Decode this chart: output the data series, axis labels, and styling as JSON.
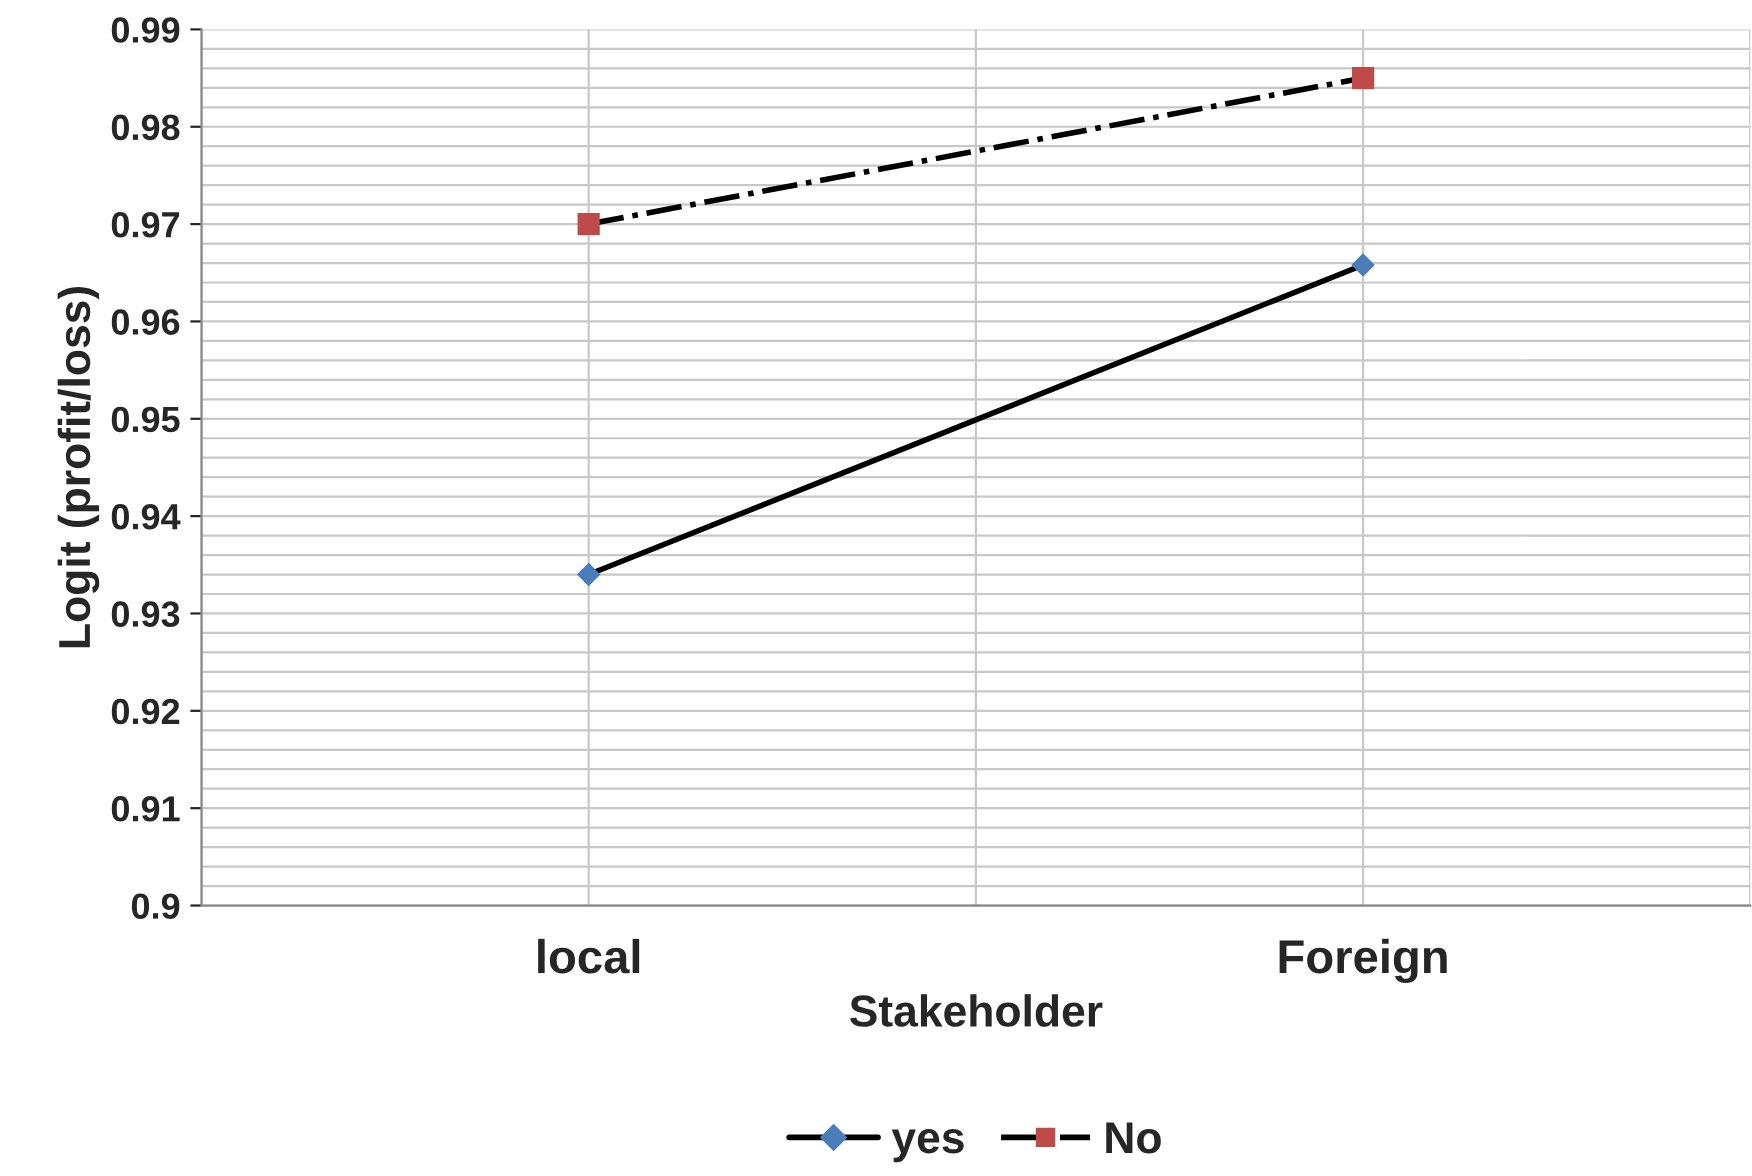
{
  "chart_data": {
    "type": "line",
    "xlabel": "Stakeholder",
    "ylabel": "Logit (profit/loss)",
    "categories": [
      "local",
      "Foreign"
    ],
    "series": [
      {
        "name": "yes",
        "color": "#4a7ebb",
        "values": [
          0.934,
          0.9658
        ],
        "marker": "diamond",
        "line_style": "solid"
      },
      {
        "name": "No",
        "color": "#be4b48",
        "values": [
          0.97,
          0.985
        ],
        "marker": "square",
        "line_style": "dashed"
      }
    ],
    "ylim": [
      0.9,
      0.99
    ],
    "yticks": [
      0.9,
      0.91,
      0.92,
      0.93,
      0.94,
      0.95,
      0.96,
      0.97,
      0.98,
      0.99
    ],
    "grid": true,
    "legend": "bottom"
  }
}
